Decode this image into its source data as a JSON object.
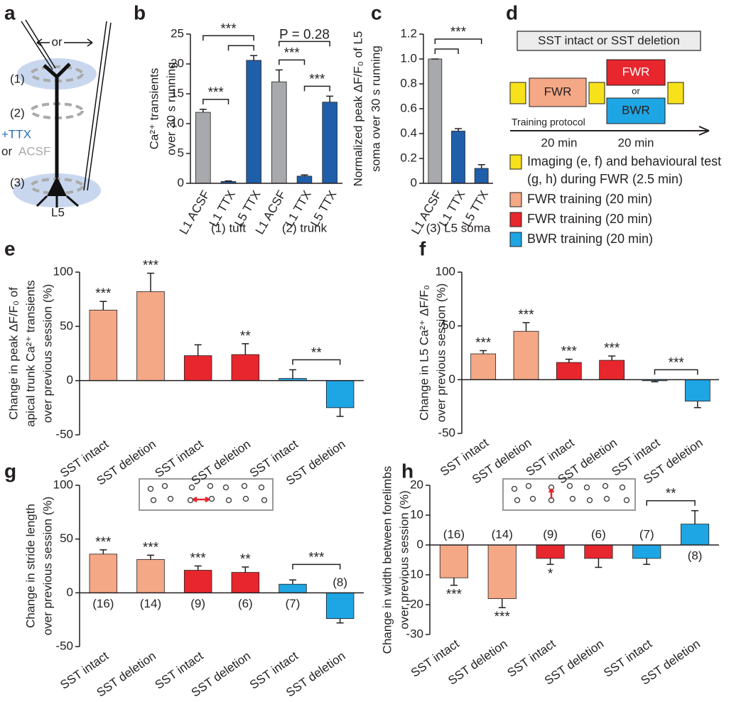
{
  "panel_a": {
    "label": "a",
    "or": "or",
    "sites": [
      "(1)",
      "(2)",
      "(3)"
    ],
    "ttx": "+TTX",
    "or2": "or",
    "acsf": "ACSF",
    "layer": "L5"
  },
  "panel_d": {
    "label": "d",
    "box": "SST intact or SST deletion",
    "fwr1": "FWR",
    "fwr2": "FWR",
    "or": "or",
    "bwr": "BWR",
    "protocol": "Training protocol",
    "durations": [
      "20 min",
      "20 min"
    ],
    "legend": [
      {
        "lines": [
          "Imaging (e, f) and behavioural test",
          "(g, h) during FWR (2.5 min)"
        ],
        "color": "#f7e11a"
      },
      {
        "lines": [
          "FWR training (20 min)"
        ],
        "color": "#f4a886"
      },
      {
        "lines": [
          "FWR training (20 min)"
        ],
        "color": "#e8262d"
      },
      {
        "lines": [
          "BWR training (20 min)"
        ],
        "color": "#1ea5e3"
      }
    ]
  },
  "chart_data": [
    {
      "type": "bar",
      "label": "b",
      "ylabel": [
        "Ca²⁺ transients",
        "over 30 s running"
      ],
      "categories": [
        "L1 ACSF",
        "L1 TTX",
        "L5 TTX",
        "L1 ACSF",
        "L1 TTX",
        "L5 TTX"
      ],
      "group_labels": [
        "(1) tuft",
        "(2) trunk"
      ],
      "values": [
        11.9,
        0.3,
        20.6,
        17,
        1.2,
        13.6
      ],
      "errors": [
        0.5,
        0.1,
        0.8,
        2,
        0.2,
        1
      ],
      "colors": [
        "#a7a9ac",
        "#1f5faa",
        "#1f5faa",
        "#a7a9ac",
        "#1f5faa",
        "#1f5faa"
      ],
      "ylim": [
        0,
        25
      ],
      "yticks": [
        0,
        5,
        10,
        15,
        20,
        25
      ],
      "comparisons": [
        {
          "between": [
            0,
            1
          ],
          "label": "***"
        },
        {
          "between": [
            1,
            2
          ]
        },
        {
          "between": [
            0,
            2
          ],
          "label": "***"
        },
        {
          "between": [
            3,
            4
          ],
          "label": "***"
        },
        {
          "between": [
            4,
            5
          ],
          "label": "***"
        },
        {
          "between": [
            3,
            5
          ],
          "label": "P = 0.28"
        }
      ]
    },
    {
      "type": "bar",
      "label": "c",
      "ylabel": [
        "Normalized peak ΔF/F₀ of L5",
        "soma over 30 s running"
      ],
      "categories": [
        "L1 ACSF",
        "L1 TTX",
        "L5 TTX"
      ],
      "group_labels": [
        "(3) L5 soma"
      ],
      "values": [
        1,
        0.42,
        0.12
      ],
      "errors": [
        0,
        0.02,
        0.03
      ],
      "colors": [
        "#a7a9ac",
        "#1f5faa",
        "#1f5faa"
      ],
      "ylim": [
        0,
        1.2
      ],
      "yticks": [
        0,
        0.2,
        0.4,
        0.6,
        0.8,
        {
          "value": 1,
          "label": "1.0"
        },
        1.2
      ],
      "comparisons": [
        {
          "between": [
            0,
            1
          ]
        },
        {
          "between": [
            0,
            2
          ],
          "label": "***"
        }
      ]
    },
    {
      "type": "bar",
      "label": "e",
      "ylabel": [
        "Change in peak ΔF/F₀ of",
        "apical trunk Ca²⁺ transients",
        "over previous session (%)"
      ],
      "categories": [
        "SST intact",
        "SST deletion",
        "SST intact",
        "SST deletion",
        "SST intact",
        "SST deletion"
      ],
      "values": [
        65,
        82,
        23,
        24,
        2,
        -25
      ],
      "errors": [
        8,
        17,
        10,
        10,
        8,
        8
      ],
      "colors": [
        "#f4a886",
        "#f4a886",
        "#e8262d",
        "#e8262d",
        "#1ea5e3",
        "#1ea5e3"
      ],
      "ylim": [
        -50,
        100
      ],
      "yticks": [
        -50,
        0,
        50,
        100
      ],
      "stars": [
        "***",
        "***",
        null,
        "**",
        null,
        null
      ],
      "comparisons": [
        {
          "between": [
            4,
            5
          ],
          "label": "**"
        }
      ]
    },
    {
      "type": "bar",
      "label": "f",
      "ylabel": [
        "Change in L5 Ca²⁺ ΔF/F₀",
        "over previous session (%)"
      ],
      "categories": [
        "SST intact",
        "SST deletion",
        "SST intact",
        "SST deletion",
        "SST intact",
        "SST deletion"
      ],
      "values": [
        24,
        45,
        16,
        18,
        -1,
        -20
      ],
      "errors": [
        3,
        8,
        3,
        4,
        1,
        6
      ],
      "colors": [
        "#f4a886",
        "#f4a886",
        "#e8262d",
        "#e8262d",
        "#1ea5e3",
        "#1ea5e3"
      ],
      "ylim": [
        -50,
        100
      ],
      "yticks": [
        -50,
        0,
        50,
        100
      ],
      "stars": [
        "***",
        "***",
        "***",
        "***",
        null,
        null
      ],
      "comparisons": [
        {
          "between": [
            4,
            5
          ],
          "label": "***"
        }
      ]
    },
    {
      "type": "bar",
      "label": "g",
      "ylabel": [
        "Change in stride length",
        "over previous session (%)"
      ],
      "categories": [
        "SST intact",
        "SST deletion",
        "SST intact",
        "SST deletion",
        "SST intact",
        "SST deletion"
      ],
      "values": [
        36,
        31,
        21,
        19,
        8,
        -24
      ],
      "errors": [
        4,
        4,
        4,
        5,
        4,
        4
      ],
      "colors": [
        "#f4a886",
        "#f4a886",
        "#e8262d",
        "#e8262d",
        "#1ea5e3",
        "#1ea5e3"
      ],
      "ylim": [
        -50,
        100
      ],
      "yticks": [
        -50,
        0,
        50,
        100
      ],
      "stars": [
        "***",
        "***",
        "***",
        "**",
        null,
        null
      ],
      "n_labels": [
        "(16)",
        "(14)",
        "(9)",
        "(6)",
        "(7)",
        "(8)"
      ],
      "comparisons": [
        {
          "between": [
            4,
            5
          ],
          "label": "***"
        }
      ]
    },
    {
      "type": "bar",
      "label": "h",
      "ylabel": [
        "Change in width between forelimbs",
        "over previous session (%)"
      ],
      "categories": [
        "SST intact",
        "SST deletion",
        "SST intact",
        "SST deletion",
        "SST intact",
        "SST deletion"
      ],
      "values": [
        -11,
        -18,
        -4.5,
        -4.5,
        -4.5,
        7
      ],
      "errors": [
        2.5,
        3,
        2,
        3,
        2,
        4.5
      ],
      "colors": [
        "#f4a886",
        "#f4a886",
        "#e8262d",
        "#e8262d",
        "#1ea5e3",
        "#1ea5e3"
      ],
      "ylim": [
        -30,
        20
      ],
      "yticks": [
        -30,
        -20,
        -10,
        0,
        10,
        20
      ],
      "stars": [
        "***",
        "***",
        "*",
        null,
        null,
        null
      ],
      "n_labels": [
        "(16)",
        "(14)",
        "(9)",
        "(6)",
        "(7)",
        "(8)"
      ],
      "comparisons": [
        {
          "between": [
            4,
            5
          ],
          "label": "**"
        }
      ]
    }
  ]
}
